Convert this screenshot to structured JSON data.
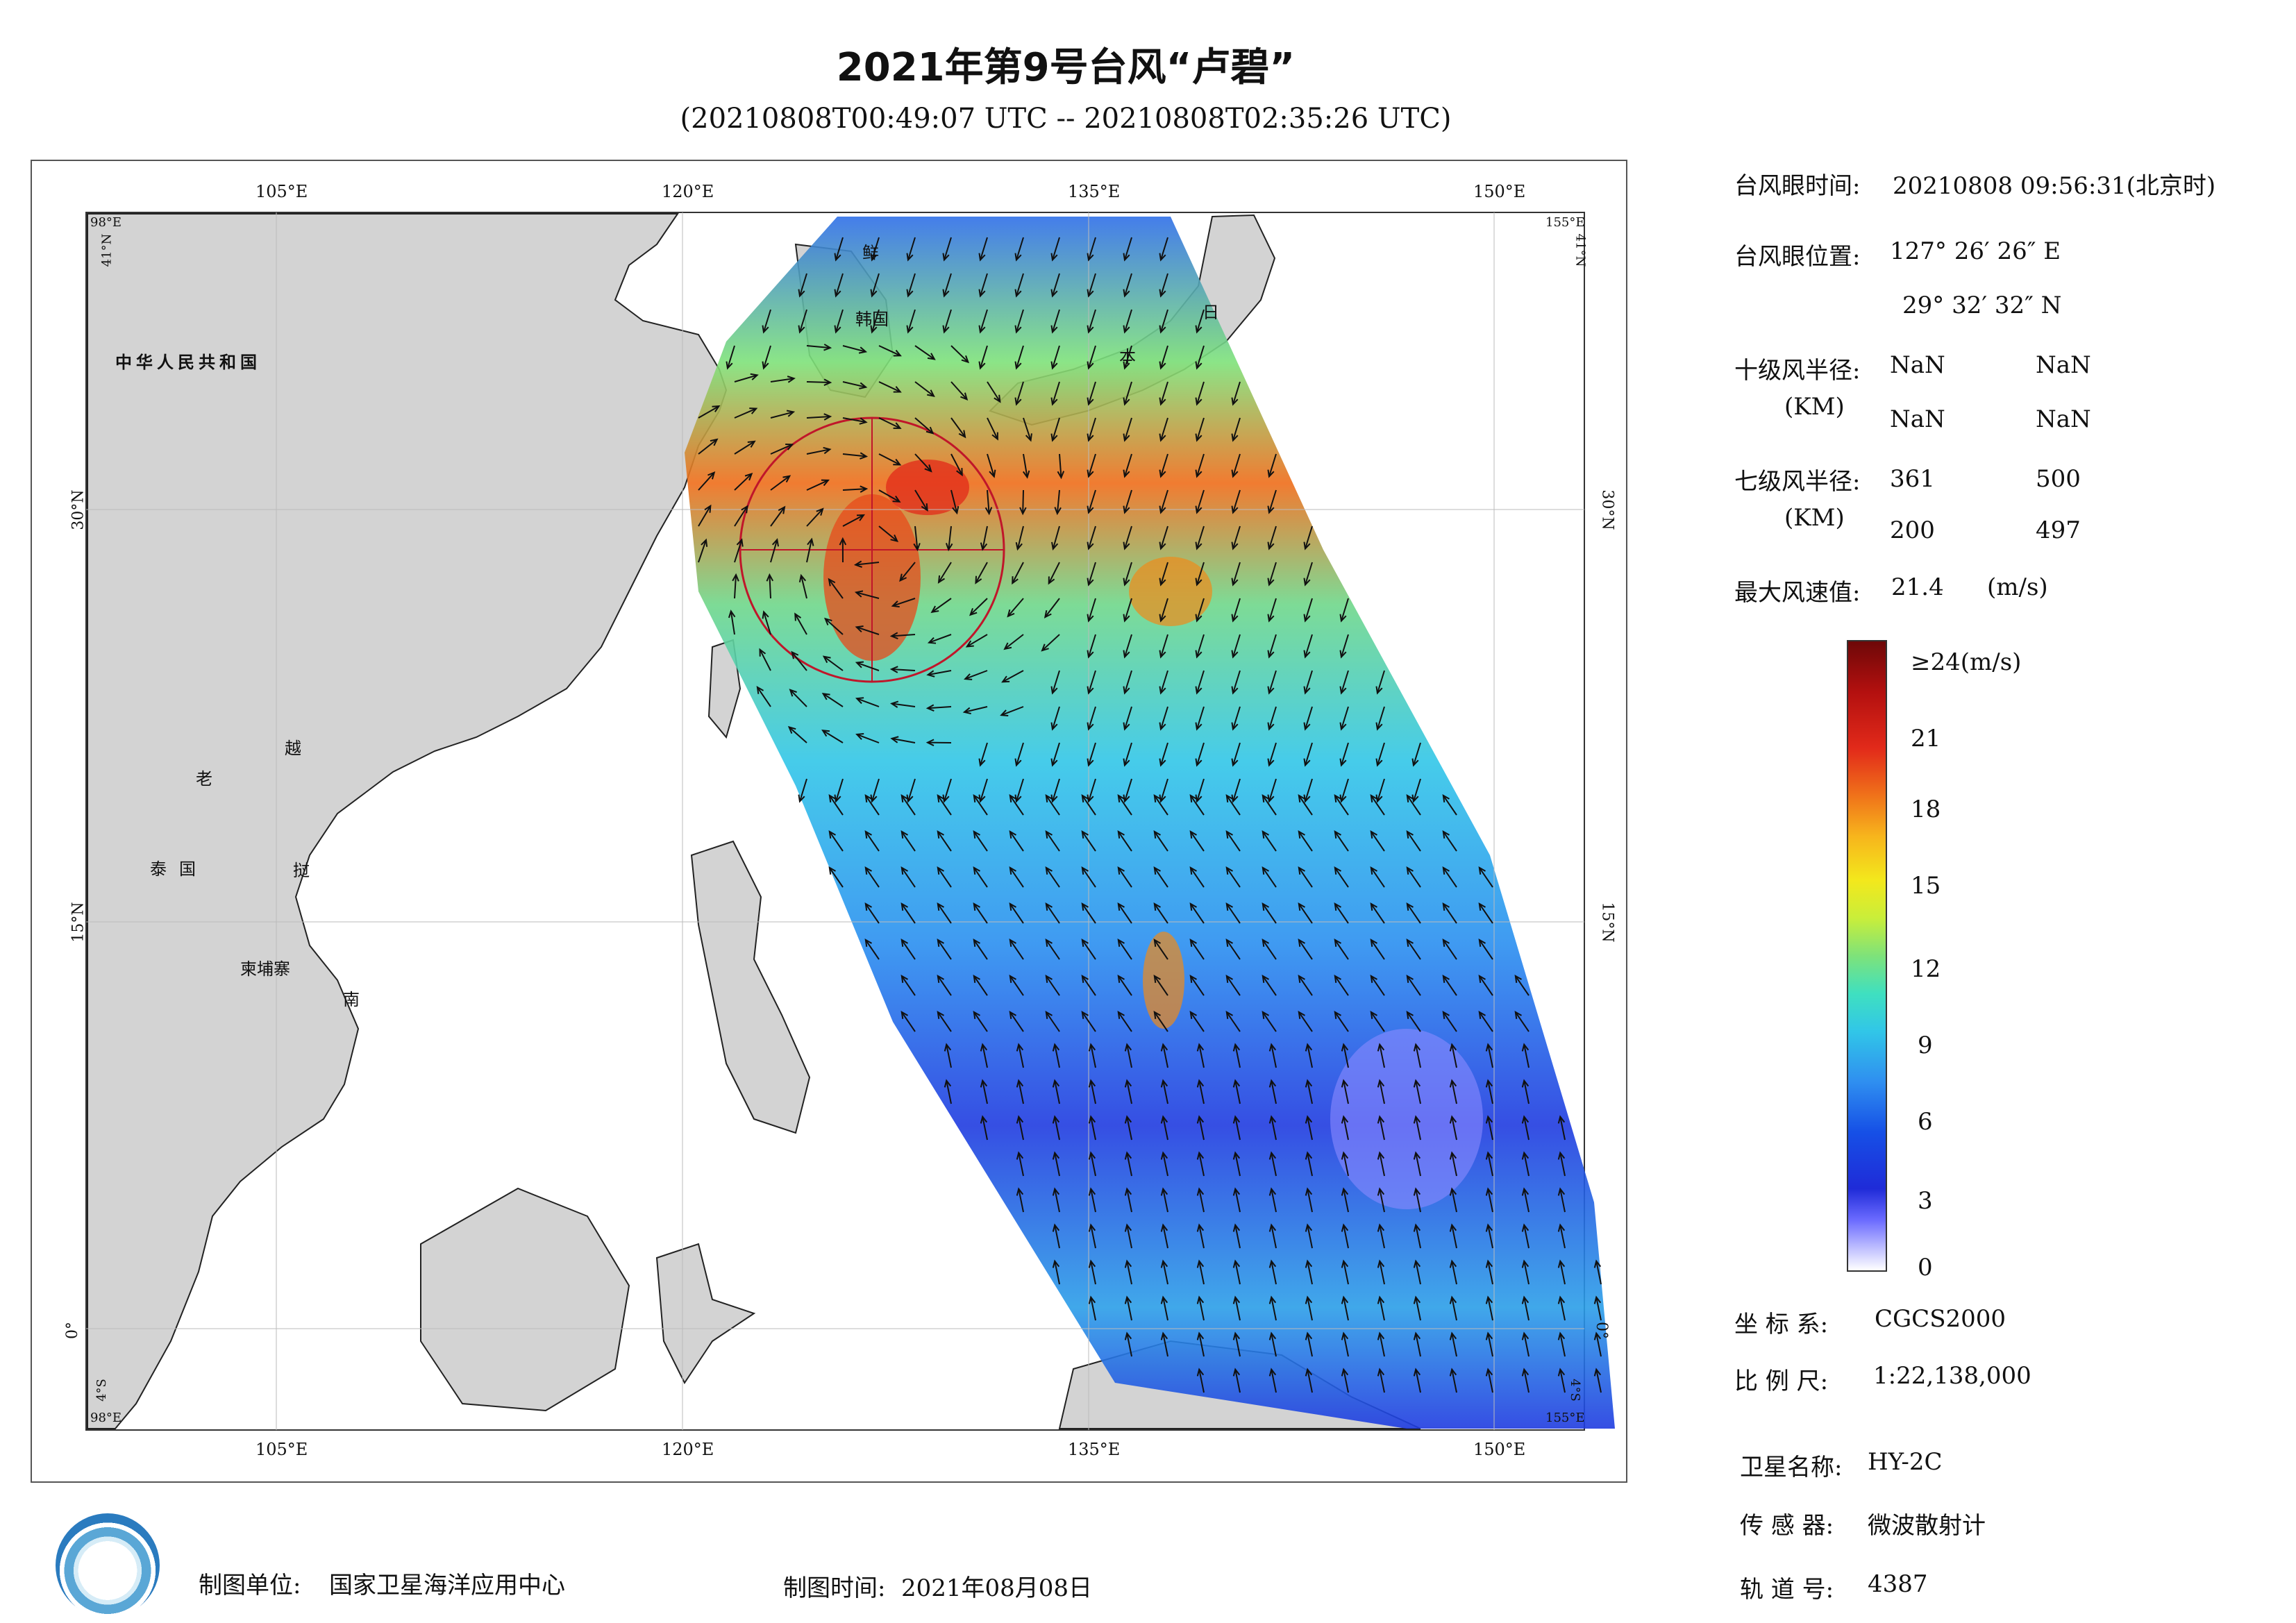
{
  "title": "2021年第9号台风“卢碧”",
  "subtitle": "(20210808T00:49:07 UTC -- 20210808T02:35:26 UTC)",
  "map": {
    "top_lon_labels": [
      "105°E",
      "120°E",
      "135°E",
      "150°E"
    ],
    "bottom_lon_labels": [
      "105°E",
      "120°E",
      "135°E",
      "150°E"
    ],
    "lat_labels_left": [
      "30°N",
      "15°N",
      "0°"
    ],
    "lat_labels_right": [
      "30°N",
      "15°N",
      "0°"
    ],
    "corner_labels": {
      "tl_lon": "98°E",
      "tl_lat": "41°N",
      "tr_lon": "155°E",
      "tr_lat": "41°N",
      "bl_lat": "4°S",
      "bl_lon": "98°E",
      "br_lat": "4°S",
      "br_lon": "155°E"
    },
    "countries": [
      "中华人民共和国",
      "老",
      "越",
      "泰国",
      "挝",
      "柬埔寨",
      "南",
      "韩国",
      "鲜",
      "日",
      "本"
    ]
  },
  "info": {
    "eye_time_label": "台风眼时间:",
    "eye_time_value": "20210808 09:56:31(北京时)",
    "eye_pos_label": "台风眼位置:",
    "eye_pos_lon": "127° 26′ 26″ E",
    "eye_pos_lat": "29° 32′ 32″ N",
    "r10_label": "十级风半径:",
    "r10_unit": "(KM)",
    "r10_values": [
      "NaN",
      "NaN",
      "NaN",
      "NaN"
    ],
    "r7_label": "七级风半径:",
    "r7_unit": "(KM)",
    "r7_values": [
      "361",
      "500",
      "200",
      "497"
    ],
    "max_wind_label": "最大风速值:",
    "max_wind_value": "21.4",
    "max_wind_unit": "(m/s)"
  },
  "colorbar": {
    "top_label": "≥24(m/s)",
    "ticks": [
      "21",
      "18",
      "15",
      "12",
      "9",
      "6",
      "3",
      "0"
    ],
    "colors": [
      "#ffffff",
      "#6b6bff",
      "#1f2bd8",
      "#2f8ff0",
      "#31c6e8",
      "#7ee27a",
      "#f3e81c",
      "#ef6d1a",
      "#e22a1a",
      "#6e0808"
    ]
  },
  "meta": {
    "crs_label": "坐 标 系:",
    "crs_value": "CGCS2000",
    "scale_label": "比 例 尺:",
    "scale_value": "1:22,138,000",
    "sat_label": "卫星名称:",
    "sat_value": "HY-2C",
    "sensor_label": "传 感 器:",
    "sensor_value": "微波散射计",
    "orbit_label": "轨 道 号:",
    "orbit_value": "4387"
  },
  "footer": {
    "unit_label": "制图单位:",
    "unit_value": "国家卫星海洋应用中心",
    "time_label": "制图时间:",
    "time_value": "2021年08月08日"
  }
}
